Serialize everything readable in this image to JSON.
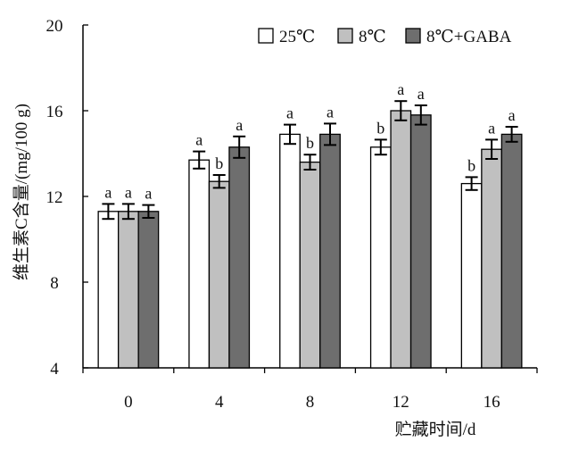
{
  "chart_data": {
    "type": "bar",
    "title": "",
    "xlabel": "贮藏时间/d",
    "ylabel": "维生素C含量/(mg/100 g)",
    "ylim": [
      4,
      20
    ],
    "yticks": [
      4,
      8,
      12,
      16,
      20
    ],
    "categories": [
      "0",
      "4",
      "8",
      "12",
      "16"
    ],
    "legend_position": "top-right",
    "grid": false,
    "series": [
      {
        "name": "25℃",
        "color": "#ffffff",
        "values": [
          11.3,
          13.7,
          14.9,
          14.3,
          12.6
        ],
        "errors": [
          0.35,
          0.4,
          0.45,
          0.35,
          0.3
        ],
        "labels": [
          "a",
          "a",
          "a",
          "b",
          "b"
        ]
      },
      {
        "name": "8℃",
        "color": "#c0c0c0",
        "values": [
          11.3,
          12.7,
          13.6,
          16.0,
          14.2
        ],
        "errors": [
          0.35,
          0.3,
          0.35,
          0.45,
          0.45
        ],
        "labels": [
          "a",
          "b",
          "b",
          "a",
          "a"
        ]
      },
      {
        "name": "8℃+GABA",
        "color": "#6e6e6e",
        "values": [
          11.3,
          14.3,
          14.9,
          15.8,
          14.9
        ],
        "errors": [
          0.3,
          0.5,
          0.5,
          0.45,
          0.35
        ],
        "labels": [
          "a",
          "a",
          "a",
          "a",
          "a"
        ]
      }
    ]
  }
}
